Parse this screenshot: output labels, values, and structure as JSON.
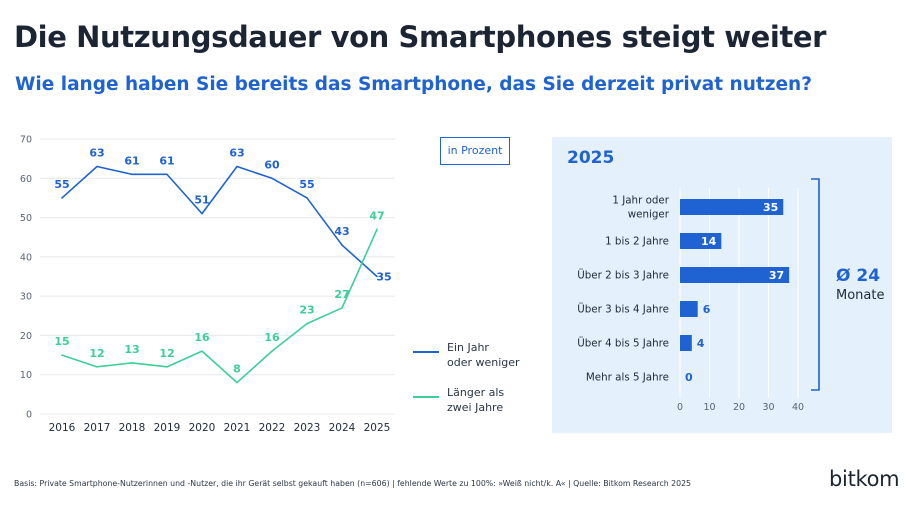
{
  "header": {
    "title": "Die Nutzungsdauer von Smartphones steigt weiter",
    "subtitle": "Wie lange haben Sie bereits das Smartphone, das Sie derzeit privat nutzen?"
  },
  "badge": "in Prozent",
  "colors": {
    "blue": "#1f63d2",
    "green": "#3ccf98",
    "panel_bg": "#e4f0fb",
    "grid": "#e6e8eb"
  },
  "chart_data": [
    {
      "type": "line",
      "x": [
        "2016",
        "2017",
        "2018",
        "2019",
        "2020",
        "2021",
        "2022",
        "2023",
        "2024",
        "2025"
      ],
      "ylim": [
        0,
        70
      ],
      "yticks": [
        0,
        10,
        20,
        30,
        40,
        50,
        60,
        70
      ],
      "grid": true,
      "legend_position": "right",
      "series": [
        {
          "name": "Ein Jahr\noder weniger",
          "color": "#1f63d2",
          "values": [
            55,
            63,
            61,
            61,
            51,
            63,
            60,
            55,
            43,
            35
          ]
        },
        {
          "name": "Länger als\nzwei Jahre",
          "color": "#3ccf98",
          "values": [
            15,
            12,
            13,
            12,
            16,
            8,
            16,
            23,
            27,
            47
          ]
        }
      ]
    },
    {
      "type": "bar",
      "orientation": "horizontal",
      "title": "2025",
      "categories": [
        "1 Jahr oder\nweniger",
        "1 bis 2 Jahre",
        "Über 2 bis 3 Jahre",
        "Über 3 bis 4 Jahre",
        "Über 4 bis 5 Jahre",
        "Mehr als 5 Jahre"
      ],
      "values": [
        35,
        14,
        37,
        6,
        4,
        0
      ],
      "xlim": [
        0,
        40
      ],
      "xticks": [
        0,
        10,
        20,
        30,
        40
      ],
      "color": "#1f63d2",
      "annotation": {
        "value": "Ø 24",
        "label": "Monate"
      }
    }
  ],
  "footnote": "Basis: Private Smartphone-Nutzerinnen und -Nutzer, die ihr Gerät selbst gekauft haben (n=606) | fehlende Werte zu 100%: »Weiß nicht/k. A« | Quelle: Bitkom Research 2025",
  "logo": "bitkom"
}
